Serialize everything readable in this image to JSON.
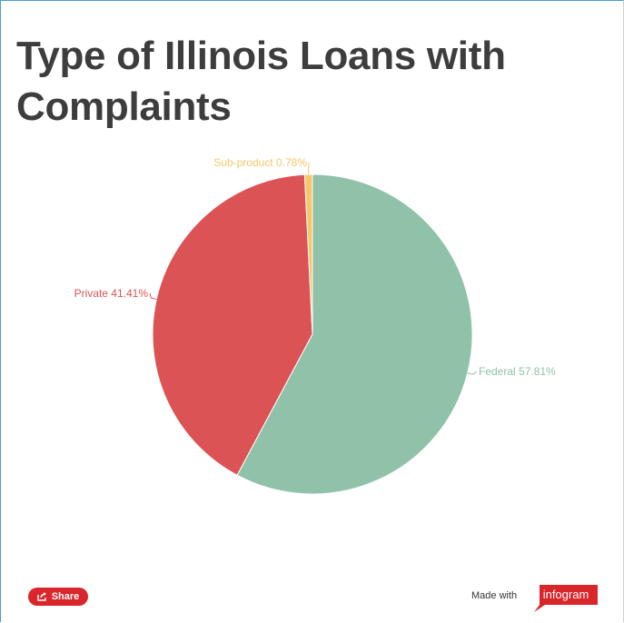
{
  "chart_data": {
    "type": "pie",
    "title": "Type of Illinois Loans with Complaints",
    "slices": [
      {
        "name": "Federal",
        "value": 57.81,
        "label": "Federal 57.81%",
        "color": "#8fc2a8"
      },
      {
        "name": "Private",
        "value": 41.41,
        "label": "Private 41.41%",
        "color": "#db5355"
      },
      {
        "name": "Sub-product",
        "value": 0.78,
        "label": "Sub-product 0.78%",
        "color": "#f5c66a"
      }
    ]
  },
  "footer": {
    "share_label": "Share",
    "made_with": "Made with",
    "brand": "infogram"
  },
  "colors": {
    "accent": "#d9262b",
    "title": "#3d3d3d"
  }
}
